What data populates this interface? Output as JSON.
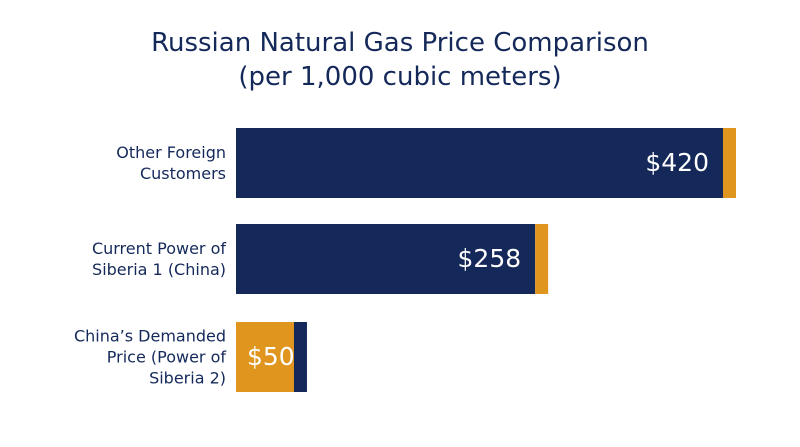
{
  "chart_data": {
    "type": "bar",
    "orientation": "horizontal",
    "title": "Russian Natural Gas Price Comparison\n(per 1,000 cubic meters)",
    "categories": [
      "Other Foreign\nCustomers",
      "Current Power of\nSiberia 1 (China)",
      "China’s Demanded\nPrice (Power of\nSiberia 2)"
    ],
    "values": [
      420,
      258,
      50
    ],
    "value_labels": [
      "$420",
      "$258",
      "$50"
    ],
    "colors": [
      "#14295a",
      "#14295a",
      "#e0951f"
    ],
    "accent_colors": [
      "#e0951f",
      "#e0951f",
      "#14295a"
    ]
  }
}
